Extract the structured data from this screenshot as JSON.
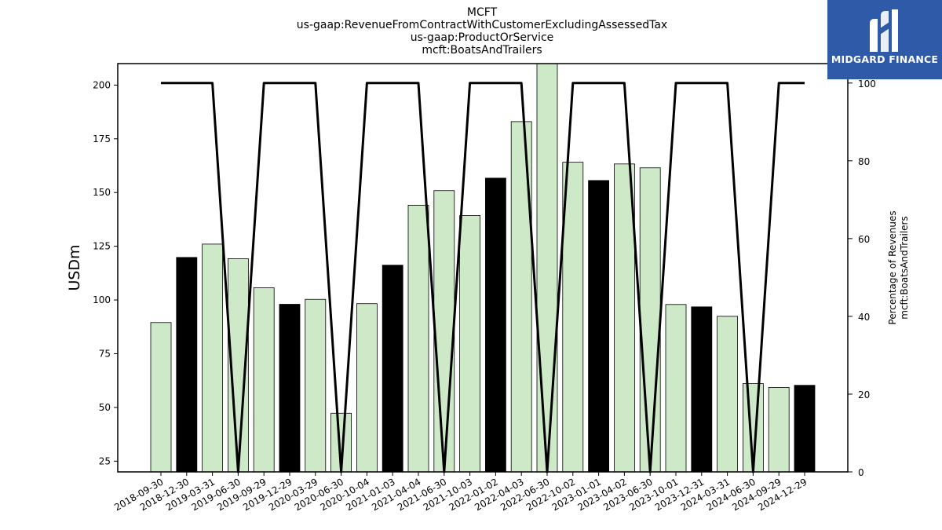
{
  "chart_data": {
    "type": "bar+line",
    "title_lines": [
      "MCFT",
      "us-gaap:RevenueFromContractWithCustomerExcludingAssessedTax",
      "us-gaap:ProductOrService",
      "mcft:BoatsAndTrailers"
    ],
    "ylabel": "USDm",
    "y2label_lines": [
      "Percentage of Revenues",
      "mcft:BoatsAndTrailers"
    ],
    "ylim": [
      20,
      210
    ],
    "y2lim": [
      0,
      105
    ],
    "yticks": [
      25,
      50,
      75,
      100,
      125,
      150,
      175,
      200
    ],
    "y2ticks": [
      0,
      20,
      40,
      60,
      80,
      100
    ],
    "categories": [
      "2018-09-30",
      "2018-12-30",
      "2019-03-31",
      "2019-06-30",
      "2019-09-29",
      "2019-12-29",
      "2020-03-29",
      "2020-06-30",
      "2020-10-04",
      "2021-01-03",
      "2021-04-04",
      "2021-06-30",
      "2021-10-03",
      "2022-01-02",
      "2022-04-03",
      "2022-06-30",
      "2022-10-02",
      "2023-01-01",
      "2023-04-02",
      "2023-06-30",
      "2023-10-01",
      "2023-12-31",
      "2024-03-31",
      "2024-06-30",
      "2024-09-29",
      "2024-12-29"
    ],
    "bars": {
      "values": [
        89.5,
        119.8,
        126.0,
        119.2,
        105.7,
        98.0,
        100.3,
        47.3,
        98.3,
        116.2,
        144.1,
        150.9,
        139.3,
        156.7,
        183.0,
        211.0,
        164.1,
        155.6,
        163.3,
        161.5,
        97.9,
        96.8,
        92.4,
        61.1,
        59.3,
        60.3
      ],
      "colors": [
        "#cde9c7",
        "#000000",
        "#cde9c7",
        "#cde9c7",
        "#cde9c7",
        "#000000",
        "#cde9c7",
        "#cde9c7",
        "#cde9c7",
        "#000000",
        "#cde9c7",
        "#cde9c7",
        "#cde9c7",
        "#000000",
        "#cde9c7",
        "#cde9c7",
        "#cde9c7",
        "#000000",
        "#cde9c7",
        "#cde9c7",
        "#cde9c7",
        "#000000",
        "#cde9c7",
        "#cde9c7",
        "#cde9c7",
        "#000000"
      ]
    },
    "line": {
      "values": [
        100,
        100,
        100,
        0,
        100,
        100,
        100,
        0,
        100,
        100,
        100,
        0,
        100,
        100,
        100,
        0,
        100,
        100,
        100,
        0,
        100,
        100,
        100,
        0,
        100,
        100
      ],
      "color": "#000000"
    },
    "grid": false,
    "legend": "none"
  },
  "logo": {
    "text": "MIDGARD FINANCE",
    "background": "#2f5aa8"
  }
}
